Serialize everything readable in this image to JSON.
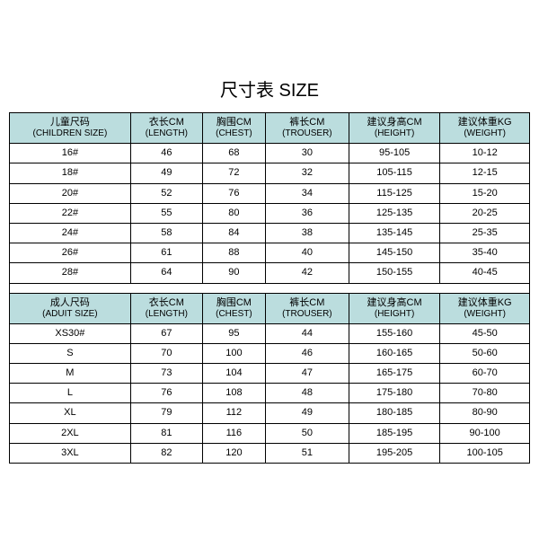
{
  "title": "尺寸表 SIZE",
  "header_bg": "#bbddde",
  "children": {
    "columns": [
      {
        "cn": "儿童尺码",
        "en": "(CHILDREN SIZE)"
      },
      {
        "cn": "衣长CM",
        "en": "(LENGTH)"
      },
      {
        "cn": "胸围CM",
        "en": "(CHEST)"
      },
      {
        "cn": "裤长CM",
        "en": "(TROUSER)"
      },
      {
        "cn": "建议身高CM",
        "en": "(HEIGHT)"
      },
      {
        "cn": "建议体重KG",
        "en": "(WEIGHT)"
      }
    ],
    "rows": [
      [
        "16#",
        "46",
        "68",
        "30",
        "95-105",
        "10-12"
      ],
      [
        "18#",
        "49",
        "72",
        "32",
        "105-115",
        "12-15"
      ],
      [
        "20#",
        "52",
        "76",
        "34",
        "115-125",
        "15-20"
      ],
      [
        "22#",
        "55",
        "80",
        "36",
        "125-135",
        "20-25"
      ],
      [
        "24#",
        "58",
        "84",
        "38",
        "135-145",
        "25-35"
      ],
      [
        "26#",
        "61",
        "88",
        "40",
        "145-150",
        "35-40"
      ],
      [
        "28#",
        "64",
        "90",
        "42",
        "150-155",
        "40-45"
      ]
    ]
  },
  "adult": {
    "columns": [
      {
        "cn": "成人尺码",
        "en": "(ADUIT SIZE)"
      },
      {
        "cn": "衣长CM",
        "en": "(LENGTH)"
      },
      {
        "cn": "胸围CM",
        "en": "(CHEST)"
      },
      {
        "cn": "裤长CM",
        "en": "(TROUSER)"
      },
      {
        "cn": "建议身高CM",
        "en": "(HEIGHT)"
      },
      {
        "cn": "建议体重KG",
        "en": "(WEIGHT)"
      }
    ],
    "rows": [
      [
        "XS30#",
        "67",
        "95",
        "44",
        "155-160",
        "45-50"
      ],
      [
        "S",
        "70",
        "100",
        "46",
        "160-165",
        "50-60"
      ],
      [
        "M",
        "73",
        "104",
        "47",
        "165-175",
        "60-70"
      ],
      [
        "L",
        "76",
        "108",
        "48",
        "175-180",
        "70-80"
      ],
      [
        "XL",
        "79",
        "112",
        "49",
        "180-185",
        "80-90"
      ],
      [
        "2XL",
        "81",
        "116",
        "50",
        "185-195",
        "90-100"
      ],
      [
        "3XL",
        "82",
        "120",
        "51",
        "195-205",
        "100-105"
      ]
    ]
  }
}
